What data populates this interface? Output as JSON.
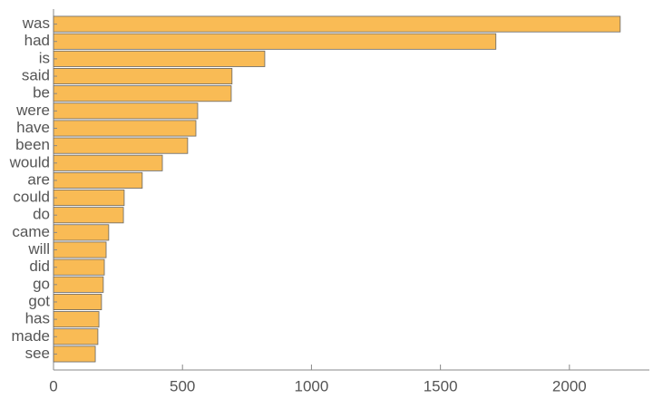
{
  "chart_data": {
    "type": "barh",
    "categories": [
      "was",
      "had",
      "is",
      "said",
      "be",
      "were",
      "have",
      "been",
      "would",
      "are",
      "could",
      "do",
      "came",
      "will",
      "did",
      "go",
      "got",
      "has",
      "made",
      "see"
    ],
    "values": [
      2197,
      1715,
      819,
      692,
      689,
      559,
      552,
      520,
      422,
      344,
      274,
      271,
      214,
      204,
      197,
      193,
      186,
      176,
      172,
      162
    ],
    "color": "#f9bb55",
    "xlim": [
      0,
      2310
    ],
    "xticks": [
      0,
      500,
      1000,
      1500,
      2000
    ]
  }
}
